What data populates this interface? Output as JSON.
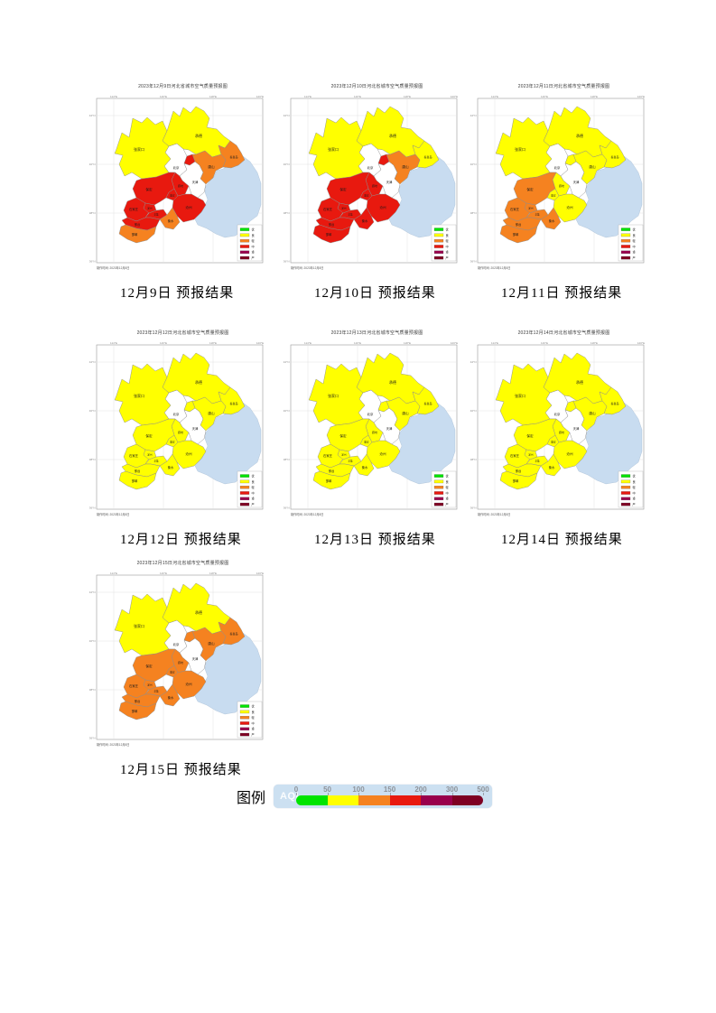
{
  "legend": {
    "label": "图例",
    "aqi_label": "AQI",
    "ticks": [
      "0",
      "50",
      "100",
      "150",
      "200",
      "300",
      "500"
    ],
    "colors": [
      "#00E400",
      "#FFFF00",
      "#F58220",
      "#E8190F",
      "#99004C",
      "#7E0023"
    ],
    "bar_background": "#CCE0F1"
  },
  "aqi_palette": {
    "优": "#00E400",
    "良": "#FFFF00",
    "轻": "#F58220",
    "中": "#E8190F",
    "重": "#99004C",
    "严": "#7E0023"
  },
  "map_common": {
    "lon_ticks": [
      "114°E",
      "116°E",
      "118°E",
      "120°E"
    ],
    "lat_ticks": [
      "42°N",
      "40°N",
      "38°N",
      "36°N"
    ],
    "mini_legend_labels": [
      "优",
      "良",
      "轻",
      "中",
      "重",
      "严"
    ],
    "sea_color": "#C8DCF0",
    "city_labels": {
      "zhangjiakou": "张家口",
      "chengde": "承德",
      "qinhuangdao": "秦皇岛",
      "tangshan": "唐山",
      "langfang": "廊坊",
      "baoding": "保定",
      "xiongan": "雄安",
      "cangzhou": "沧州",
      "shijiazhuang": "石家庄",
      "dingzhou": "定州",
      "xinji": "辛集",
      "hengshui": "衡水",
      "xingtai": "邢台",
      "handan": "邯郸",
      "beijing": "北京",
      "tianjin": "天津"
    }
  },
  "figures": [
    {
      "title": "2023年12月9日河北省城市空气质量预报图",
      "caption": "12月9日 预报结果",
      "note": "制作时间: 2023年12月8日",
      "levels": {
        "zhangjiakou": "良",
        "chengde": "良",
        "qinhuangdao": "轻",
        "tangshan": "轻",
        "langfang": "中",
        "baoding": "中",
        "xiongan": "中",
        "cangzhou": "中",
        "shijiazhuang": "中",
        "dingzhou": "中",
        "xinji": "中",
        "hengshui": "轻",
        "xingtai": "中",
        "handan": "轻"
      }
    },
    {
      "title": "2023年12月10日河北省城市空气质量预报图",
      "caption": "12月10日 预报结果",
      "note": "制作时间: 2023年12月8日",
      "levels": {
        "zhangjiakou": "良",
        "chengde": "良",
        "qinhuangdao": "良",
        "tangshan": "轻",
        "langfang": "中",
        "baoding": "中",
        "xiongan": "中",
        "cangzhou": "中",
        "shijiazhuang": "中",
        "dingzhou": "中",
        "xinji": "中",
        "hengshui": "中",
        "xingtai": "中",
        "handan": "中"
      }
    },
    {
      "title": "2023年12月11日河北省城市空气质量预报图",
      "caption": "12月11日 预报结果",
      "note": "制作时间: 2023年12月8日",
      "levels": {
        "zhangjiakou": "良",
        "chengde": "良",
        "qinhuangdao": "良",
        "tangshan": "良",
        "langfang": "良",
        "baoding": "轻",
        "xiongan": "良",
        "cangzhou": "良",
        "shijiazhuang": "轻",
        "dingzhou": "轻",
        "xinji": "轻",
        "hengshui": "轻",
        "xingtai": "轻",
        "handan": "轻"
      }
    },
    {
      "title": "2023年12月12日河北省城市空气质量预报图",
      "caption": "12月12日 预报结果",
      "note": "制作时间: 2023年12月8日",
      "levels": {
        "zhangjiakou": "良",
        "chengde": "良",
        "qinhuangdao": "良",
        "tangshan": "良",
        "langfang": "良",
        "baoding": "良",
        "xiongan": "良",
        "cangzhou": "良",
        "shijiazhuang": "良",
        "dingzhou": "良",
        "xinji": "良",
        "hengshui": "良",
        "xingtai": "良",
        "handan": "良"
      }
    },
    {
      "title": "2023年12月13日河北省城市空气质量预报图",
      "caption": "12月13日 预报结果",
      "note": "制作时间: 2023年12月8日",
      "levels": {
        "zhangjiakou": "良",
        "chengde": "良",
        "qinhuangdao": "良",
        "tangshan": "良",
        "langfang": "良",
        "baoding": "良",
        "xiongan": "良",
        "cangzhou": "良",
        "shijiazhuang": "良",
        "dingzhou": "良",
        "xinji": "良",
        "hengshui": "良",
        "xingtai": "良",
        "handan": "良"
      }
    },
    {
      "title": "2023年12月14日河北省城市空气质量预报图",
      "caption": "12月14日 预报结果",
      "note": "制作时间: 2023年12月8日",
      "levels": {
        "zhangjiakou": "良",
        "chengde": "良",
        "qinhuangdao": "良",
        "tangshan": "良",
        "langfang": "良",
        "baoding": "良",
        "xiongan": "良",
        "cangzhou": "良",
        "shijiazhuang": "良",
        "dingzhou": "良",
        "xinji": "良",
        "hengshui": "良",
        "xingtai": "良",
        "handan": "良"
      }
    },
    {
      "title": "2023年12月15日河北省城市空气质量预报图",
      "caption": "12月15日 预报结果",
      "note": "制作时间: 2023年12月8日",
      "levels": {
        "zhangjiakou": "良",
        "chengde": "良",
        "qinhuangdao": "轻",
        "tangshan": "轻",
        "langfang": "轻",
        "baoding": "轻",
        "xiongan": "轻",
        "cangzhou": "轻",
        "shijiazhuang": "轻",
        "dingzhou": "轻",
        "xinji": "轻",
        "hengshui": "轻",
        "xingtai": "轻",
        "handan": "轻"
      }
    }
  ]
}
